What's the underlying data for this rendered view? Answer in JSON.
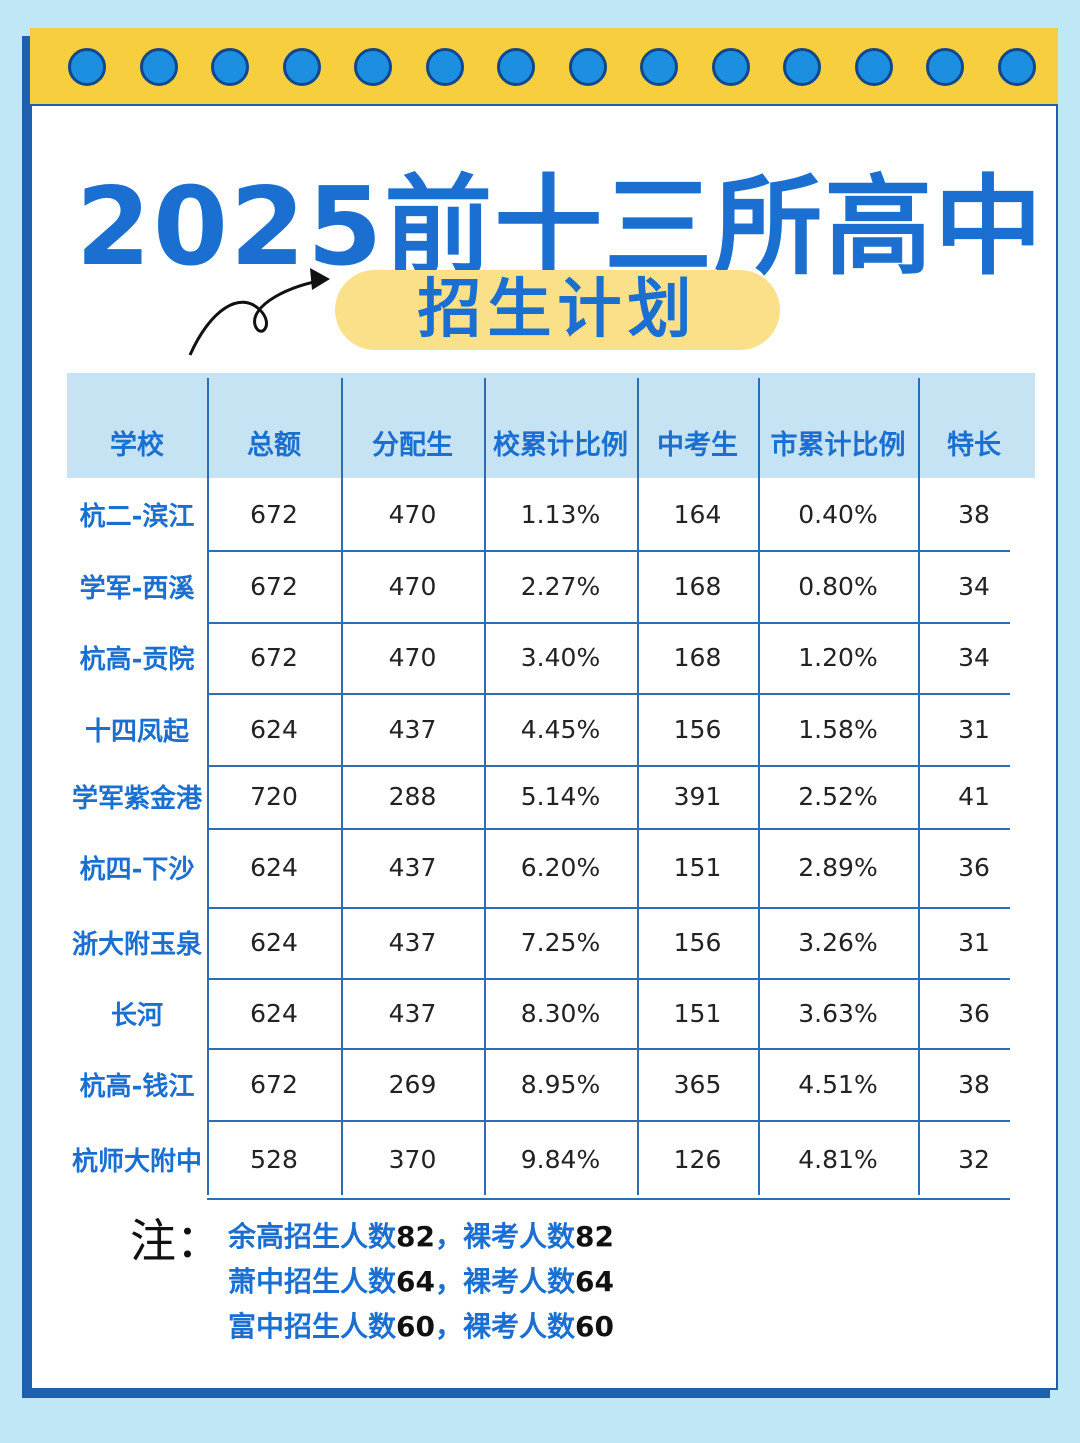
{
  "header": {
    "title": "2025前十三所高中",
    "subtitle": "招生计划"
  },
  "table": {
    "columns": [
      "学校",
      "总额",
      "分配生",
      "校累计比例",
      "中考生",
      "市累计比例",
      "特长"
    ],
    "rows": [
      [
        "杭二-滨江",
        "672",
        "470",
        "1.13%",
        "164",
        "0.40%",
        "38"
      ],
      [
        "学军-西溪",
        "672",
        "470",
        "2.27%",
        "168",
        "0.80%",
        "34"
      ],
      [
        "杭高-贡院",
        "672",
        "470",
        "3.40%",
        "168",
        "1.20%",
        "34"
      ],
      [
        "十四凤起",
        "624",
        "437",
        "4.45%",
        "156",
        "1.58%",
        "31"
      ],
      [
        "学军紫金港",
        "720",
        "288",
        "5.14%",
        "391",
        "2.52%",
        "41"
      ],
      [
        "杭四-下沙",
        "624",
        "437",
        "6.20%",
        "151",
        "2.89%",
        "36"
      ],
      [
        "浙大附玉泉",
        "624",
        "437",
        "7.25%",
        "156",
        "3.26%",
        "31"
      ],
      [
        "长河",
        "624",
        "437",
        "8.30%",
        "151",
        "3.63%",
        "36"
      ],
      [
        "杭高-钱江",
        "672",
        "269",
        "8.95%",
        "365",
        "4.51%",
        "38"
      ],
      [
        "杭师大附中",
        "528",
        "370",
        "9.84%",
        "126",
        "4.81%",
        "32"
      ]
    ]
  },
  "notes": {
    "label": "注：",
    "lines": [
      [
        "余高招生人数",
        "82",
        "，裸考人数",
        "82"
      ],
      [
        "萧中招生人数",
        "64",
        "，裸考人数",
        "64"
      ],
      [
        "富中招生人数",
        "60",
        "，裸考人数",
        "60"
      ]
    ]
  }
}
